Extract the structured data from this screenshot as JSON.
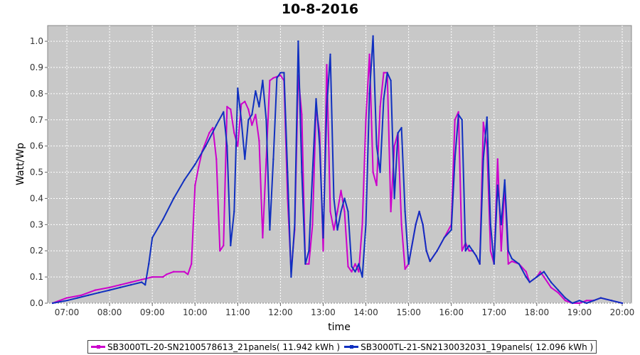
{
  "chart_data": {
    "type": "line",
    "title": "10-8-2016",
    "xlabel": "time",
    "ylabel": "Watt/Wp",
    "x_ticks": [
      "07:00",
      "08:00",
      "09:00",
      "10:00",
      "11:00",
      "12:00",
      "13:00",
      "14:00",
      "15:00",
      "16:00",
      "17:00",
      "18:00",
      "19:00",
      "20:00"
    ],
    "y_ticks": [
      "0.0",
      "0.1",
      "0.2",
      "0.3",
      "0.4",
      "0.5",
      "0.6",
      "0.7",
      "0.8",
      "0.9",
      "1.0"
    ],
    "xlim": [
      "06:33",
      "20:13"
    ],
    "ylim": [
      0,
      1.06
    ],
    "grid": true,
    "legend_position": "bottom",
    "series": [
      {
        "name": "SB3000TL-20-SN2100578613_21panels( 11.942 kWh )",
        "color": "#cc00cc",
        "points": [
          [
            "06:40",
            0.0
          ],
          [
            "07:00",
            0.02
          ],
          [
            "07:20",
            0.03
          ],
          [
            "07:40",
            0.05
          ],
          [
            "08:00",
            0.06
          ],
          [
            "08:15",
            0.07
          ],
          [
            "08:30",
            0.08
          ],
          [
            "08:45",
            0.09
          ],
          [
            "09:00",
            0.1
          ],
          [
            "09:15",
            0.1
          ],
          [
            "09:20",
            0.11
          ],
          [
            "09:30",
            0.12
          ],
          [
            "09:45",
            0.12
          ],
          [
            "09:50",
            0.11
          ],
          [
            "09:55",
            0.15
          ],
          [
            "10:00",
            0.45
          ],
          [
            "10:05",
            0.52
          ],
          [
            "10:10",
            0.58
          ],
          [
            "10:20",
            0.65
          ],
          [
            "10:25",
            0.67
          ],
          [
            "10:30",
            0.55
          ],
          [
            "10:35",
            0.2
          ],
          [
            "10:40",
            0.22
          ],
          [
            "10:45",
            0.75
          ],
          [
            "10:50",
            0.74
          ],
          [
            "10:55",
            0.65
          ],
          [
            "11:00",
            0.6
          ],
          [
            "11:05",
            0.76
          ],
          [
            "11:10",
            0.77
          ],
          [
            "11:15",
            0.74
          ],
          [
            "11:20",
            0.68
          ],
          [
            "11:25",
            0.72
          ],
          [
            "11:30",
            0.62
          ],
          [
            "11:35",
            0.25
          ],
          [
            "11:40",
            0.55
          ],
          [
            "11:45",
            0.85
          ],
          [
            "11:50",
            0.86
          ],
          [
            "12:00",
            0.87
          ],
          [
            "12:05",
            0.85
          ],
          [
            "12:10",
            0.4
          ],
          [
            "12:15",
            0.12
          ],
          [
            "12:20",
            0.28
          ],
          [
            "12:25",
            0.87
          ],
          [
            "12:30",
            0.72
          ],
          [
            "12:35",
            0.15
          ],
          [
            "12:40",
            0.15
          ],
          [
            "12:45",
            0.3
          ],
          [
            "12:50",
            0.75
          ],
          [
            "12:55",
            0.65
          ],
          [
            "13:00",
            0.2
          ],
          [
            "13:05",
            0.91
          ],
          [
            "13:10",
            0.35
          ],
          [
            "13:15",
            0.28
          ],
          [
            "13:20",
            0.35
          ],
          [
            "13:25",
            0.43
          ],
          [
            "13:30",
            0.35
          ],
          [
            "13:35",
            0.14
          ],
          [
            "13:40",
            0.12
          ],
          [
            "13:45",
            0.15
          ],
          [
            "13:50",
            0.12
          ],
          [
            "13:55",
            0.3
          ],
          [
            "14:00",
            0.7
          ],
          [
            "14:05",
            0.95
          ],
          [
            "14:10",
            0.5
          ],
          [
            "14:15",
            0.45
          ],
          [
            "14:20",
            0.75
          ],
          [
            "14:25",
            0.88
          ],
          [
            "14:30",
            0.88
          ],
          [
            "14:35",
            0.35
          ],
          [
            "14:40",
            0.6
          ],
          [
            "14:45",
            0.65
          ],
          [
            "14:50",
            0.3
          ],
          [
            "14:55",
            0.13
          ],
          [
            "15:00",
            0.15
          ],
          [
            "15:10",
            0.3
          ],
          [
            "15:15",
            0.35
          ],
          [
            "15:20",
            0.3
          ],
          [
            "15:25",
            0.2
          ],
          [
            "15:30",
            0.16
          ],
          [
            "15:40",
            0.2
          ],
          [
            "15:50",
            0.25
          ],
          [
            "16:00",
            0.3
          ],
          [
            "16:05",
            0.7
          ],
          [
            "16:10",
            0.73
          ],
          [
            "16:15",
            0.2
          ],
          [
            "16:20",
            0.23
          ],
          [
            "16:25",
            0.2
          ],
          [
            "16:30",
            0.2
          ],
          [
            "16:35",
            0.18
          ],
          [
            "16:40",
            0.15
          ],
          [
            "16:45",
            0.69
          ],
          [
            "16:50",
            0.6
          ],
          [
            "16:55",
            0.2
          ],
          [
            "17:00",
            0.15
          ],
          [
            "17:05",
            0.55
          ],
          [
            "17:10",
            0.2
          ],
          [
            "17:15",
            0.45
          ],
          [
            "17:20",
            0.15
          ],
          [
            "17:25",
            0.16
          ],
          [
            "17:35",
            0.15
          ],
          [
            "17:45",
            0.12
          ],
          [
            "17:50",
            0.08
          ],
          [
            "18:00",
            0.1
          ],
          [
            "18:05",
            0.12
          ],
          [
            "18:10",
            0.1
          ],
          [
            "18:20",
            0.06
          ],
          [
            "18:30",
            0.04
          ],
          [
            "18:40",
            0.01
          ],
          [
            "18:50",
            0.0
          ],
          [
            "19:00",
            0.0
          ],
          [
            "19:10",
            0.01
          ],
          [
            "19:20",
            0.01
          ],
          [
            "19:30",
            0.02
          ],
          [
            "19:45",
            0.01
          ],
          [
            "20:00",
            0.0
          ]
        ]
      },
      {
        "name": "SB3000TL-21-SN2130032031_19panels( 12.096 kWh )",
        "color": "#1030c0",
        "points": [
          [
            "06:40",
            0.0
          ],
          [
            "07:00",
            0.01
          ],
          [
            "07:15",
            0.02
          ],
          [
            "07:30",
            0.03
          ],
          [
            "07:45",
            0.04
          ],
          [
            "08:00",
            0.05
          ],
          [
            "08:15",
            0.06
          ],
          [
            "08:30",
            0.07
          ],
          [
            "08:45",
            0.08
          ],
          [
            "08:50",
            0.07
          ],
          [
            "08:55",
            0.15
          ],
          [
            "09:00",
            0.25
          ],
          [
            "09:15",
            0.32
          ],
          [
            "09:30",
            0.4
          ],
          [
            "09:45",
            0.47
          ],
          [
            "10:00",
            0.53
          ],
          [
            "10:15",
            0.6
          ],
          [
            "10:30",
            0.68
          ],
          [
            "10:40",
            0.73
          ],
          [
            "10:45",
            0.6
          ],
          [
            "10:50",
            0.22
          ],
          [
            "10:55",
            0.35
          ],
          [
            "11:00",
            0.82
          ],
          [
            "11:05",
            0.7
          ],
          [
            "11:10",
            0.55
          ],
          [
            "11:15",
            0.7
          ],
          [
            "11:20",
            0.72
          ],
          [
            "11:25",
            0.81
          ],
          [
            "11:30",
            0.75
          ],
          [
            "11:35",
            0.85
          ],
          [
            "11:40",
            0.7
          ],
          [
            "11:45",
            0.28
          ],
          [
            "11:50",
            0.55
          ],
          [
            "11:55",
            0.86
          ],
          [
            "12:00",
            0.88
          ],
          [
            "12:05",
            0.88
          ],
          [
            "12:10",
            0.5
          ],
          [
            "12:15",
            0.1
          ],
          [
            "12:20",
            0.3
          ],
          [
            "12:25",
            1.0
          ],
          [
            "12:30",
            0.5
          ],
          [
            "12:35",
            0.15
          ],
          [
            "12:40",
            0.2
          ],
          [
            "12:45",
            0.5
          ],
          [
            "12:50",
            0.78
          ],
          [
            "12:55",
            0.6
          ],
          [
            "13:00",
            0.25
          ],
          [
            "13:05",
            0.75
          ],
          [
            "13:10",
            0.95
          ],
          [
            "13:15",
            0.4
          ],
          [
            "13:20",
            0.28
          ],
          [
            "13:25",
            0.35
          ],
          [
            "13:30",
            0.4
          ],
          [
            "13:35",
            0.35
          ],
          [
            "13:40",
            0.14
          ],
          [
            "13:45",
            0.12
          ],
          [
            "13:50",
            0.15
          ],
          [
            "13:55",
            0.1
          ],
          [
            "14:00",
            0.3
          ],
          [
            "14:05",
            0.8
          ],
          [
            "14:10",
            1.02
          ],
          [
            "14:15",
            0.6
          ],
          [
            "14:20",
            0.5
          ],
          [
            "14:25",
            0.78
          ],
          [
            "14:30",
            0.88
          ],
          [
            "14:35",
            0.85
          ],
          [
            "14:40",
            0.4
          ],
          [
            "14:45",
            0.65
          ],
          [
            "14:50",
            0.67
          ],
          [
            "14:55",
            0.35
          ],
          [
            "15:00",
            0.15
          ],
          [
            "15:10",
            0.3
          ],
          [
            "15:15",
            0.35
          ],
          [
            "15:20",
            0.3
          ],
          [
            "15:25",
            0.2
          ],
          [
            "15:30",
            0.16
          ],
          [
            "15:40",
            0.2
          ],
          [
            "15:50",
            0.25
          ],
          [
            "16:00",
            0.28
          ],
          [
            "16:05",
            0.55
          ],
          [
            "16:10",
            0.72
          ],
          [
            "16:15",
            0.7
          ],
          [
            "16:20",
            0.2
          ],
          [
            "16:25",
            0.22
          ],
          [
            "16:30",
            0.2
          ],
          [
            "16:35",
            0.18
          ],
          [
            "16:40",
            0.15
          ],
          [
            "16:45",
            0.55
          ],
          [
            "16:50",
            0.71
          ],
          [
            "16:55",
            0.3
          ],
          [
            "17:00",
            0.15
          ],
          [
            "17:05",
            0.45
          ],
          [
            "17:10",
            0.3
          ],
          [
            "17:15",
            0.47
          ],
          [
            "17:20",
            0.2
          ],
          [
            "17:25",
            0.17
          ],
          [
            "17:35",
            0.15
          ],
          [
            "17:45",
            0.1
          ],
          [
            "17:50",
            0.08
          ],
          [
            "18:00",
            0.1
          ],
          [
            "18:10",
            0.12
          ],
          [
            "18:20",
            0.08
          ],
          [
            "18:30",
            0.05
          ],
          [
            "18:40",
            0.02
          ],
          [
            "18:50",
            0.0
          ],
          [
            "19:00",
            0.01
          ],
          [
            "19:10",
            0.0
          ],
          [
            "19:20",
            0.01
          ],
          [
            "19:30",
            0.02
          ],
          [
            "19:45",
            0.01
          ],
          [
            "20:00",
            0.0
          ]
        ]
      }
    ]
  }
}
